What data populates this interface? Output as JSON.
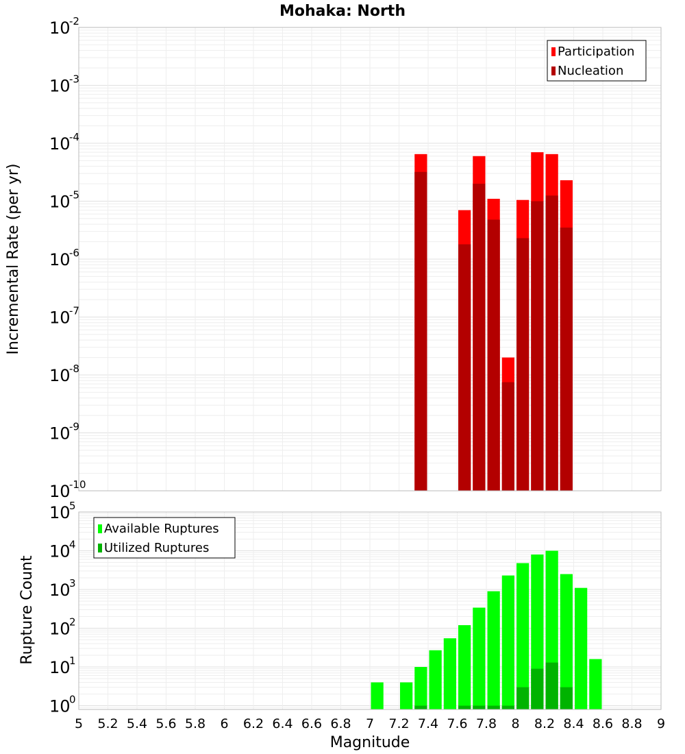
{
  "chart_data": [
    {
      "type": "bar",
      "title": "Mohaka: North",
      "xlabel": "",
      "ylabel": "Incremental Rate (per yr)",
      "yscale": "log",
      "xlim": [
        5,
        9
      ],
      "ylim": [
        1e-10,
        0.01
      ],
      "grid": true,
      "legend_position": "top-right",
      "bin_width": 0.1,
      "x": [
        7.35,
        7.65,
        7.75,
        7.85,
        7.95,
        8.05,
        8.15,
        8.25,
        8.35
      ],
      "series": [
        {
          "name": "Participation",
          "color": "#ff0000",
          "values": [
            6.5e-05,
            7e-06,
            6e-05,
            1.1e-05,
            2e-08,
            1.05e-05,
            7e-05,
            6.5e-05,
            2.3e-05
          ]
        },
        {
          "name": "Nucleation",
          "color": "#b30000",
          "values": [
            3.2e-05,
            1.8e-06,
            2e-05,
            4.8e-06,
            7.5e-09,
            2.3e-06,
            1e-05,
            1.25e-05,
            3.5e-06
          ]
        }
      ]
    },
    {
      "type": "bar",
      "title": "",
      "xlabel": "Magnitude",
      "ylabel": "Rupture Count",
      "yscale": "log",
      "xlim": [
        5,
        9
      ],
      "ylim": [
        0.8,
        100000
      ],
      "grid": true,
      "legend_position": "top-left",
      "bin_width": 0.1,
      "x": [
        7.05,
        7.25,
        7.35,
        7.45,
        7.55,
        7.65,
        7.75,
        7.85,
        7.95,
        8.05,
        8.15,
        8.25,
        8.35,
        8.45,
        8.55
      ],
      "series": [
        {
          "name": "Available Ruptures",
          "color": "#00ff00",
          "values": [
            4,
            4,
            10,
            27,
            55,
            120,
            340,
            900,
            2300,
            4800,
            8000,
            10000,
            2500,
            1100,
            16
          ]
        },
        {
          "name": "Utilized Ruptures",
          "color": "#00b300",
          "values": [
            0,
            0,
            1,
            0,
            0,
            1,
            1,
            1,
            1,
            3,
            9,
            13,
            3,
            0,
            0
          ]
        }
      ],
      "xticks": [
        "5",
        "5.2",
        "5.4",
        "5.6",
        "5.8",
        "6",
        "6.2",
        "6.4",
        "6.6",
        "6.8",
        "7",
        "7.2",
        "7.4",
        "7.6",
        "7.8",
        "8",
        "8.2",
        "8.4",
        "8.6",
        "8.8",
        "9"
      ]
    }
  ]
}
